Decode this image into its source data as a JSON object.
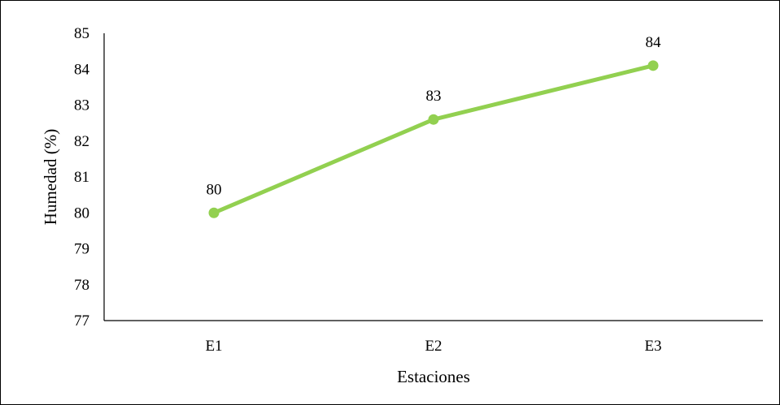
{
  "chart_data": {
    "type": "line",
    "categories": [
      "E1",
      "E2",
      "E3"
    ],
    "series": [
      {
        "values": [
          80.0,
          82.6,
          84.1
        ],
        "data_labels": [
          "80",
          "83",
          "84"
        ],
        "color": "#92D050"
      }
    ],
    "title": "",
    "xlabel": "Estaciones",
    "ylabel": "Humedad  (%)",
    "ylim": [
      77,
      85
    ],
    "yticks": [
      "77",
      "78",
      "79",
      "80",
      "81",
      "82",
      "83",
      "84",
      "85"
    ],
    "grid": false,
    "legend": "none",
    "axis_color": "#000000"
  }
}
